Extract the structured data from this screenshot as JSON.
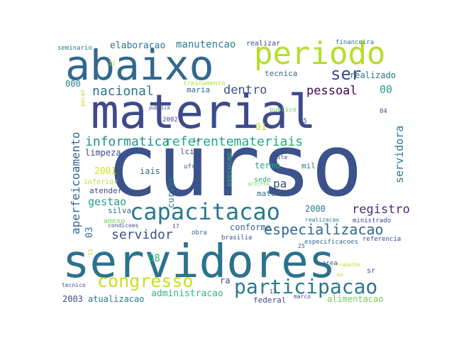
{
  "word_cloud": {
    "words": [
      {
        "text": "curso",
        "color": "#3b528b"
      },
      {
        "text": "material",
        "color": "#3e4a89"
      },
      {
        "text": "servidores",
        "color": "#2c728e"
      },
      {
        "text": "abaixo",
        "color": "#31688e"
      },
      {
        "text": "periodo",
        "color": "#b5de2b"
      },
      {
        "text": "capacitacao",
        "color": "#2a788e"
      },
      {
        "text": "participacao",
        "color": "#2a788e"
      },
      {
        "text": "congresso",
        "color": "#c8e020"
      },
      {
        "text": "especializacao",
        "color": "#31688e"
      },
      {
        "text": "referentemateriais",
        "color": "#22a884"
      },
      {
        "text": "informatica",
        "color": "#21918c"
      },
      {
        "text": "nacional",
        "color": "#2c728e"
      },
      {
        "text": "dentro",
        "color": "#3b528b"
      },
      {
        "text": "pessoal",
        "color": "#440154"
      },
      {
        "text": "ser",
        "color": "#3e4a89"
      },
      {
        "text": "servidor",
        "color": "#3b528b"
      },
      {
        "text": "registro",
        "color": "#482878"
      },
      {
        "text": "servidora",
        "color": "#2a788e"
      },
      {
        "text": "aperfeicoamento",
        "color": "#31688e"
      },
      {
        "text": "gestao",
        "color": "#1f9e89"
      },
      {
        "text": "manutencao",
        "color": "#26828e"
      },
      {
        "text": "elaboracao",
        "color": "#2c728e"
      },
      {
        "text": "administracao",
        "color": "#35b779"
      },
      {
        "text": "atualizacao",
        "color": "#2a788e"
      },
      {
        "text": "alimentacao",
        "color": "#6ece58"
      },
      {
        "text": "realizado",
        "color": "#2a788e"
      },
      {
        "text": "cursos",
        "color": "#2a788e"
      },
      {
        "text": "conforme",
        "color": "#31688e"
      },
      {
        "text": "limpeza",
        "color": "#3e4a89"
      },
      {
        "text": "silva",
        "color": "#31688e"
      },
      {
        "text": "termo",
        "color": "#22a884"
      },
      {
        "text": "federal",
        "color": "#3e4a89"
      },
      {
        "text": "2001",
        "color": "#d2e21b"
      },
      {
        "text": "08",
        "color": "#2db27d"
      },
      {
        "text": "03",
        "color": "#31688e"
      },
      {
        "text": "01",
        "color": "#b5de2b"
      },
      {
        "text": "00",
        "color": "#1f9e89"
      },
      {
        "text": "000",
        "color": "#26828e"
      },
      {
        "text": "2000",
        "color": "#2a788e"
      },
      {
        "text": "2003",
        "color": "#3e4a89"
      },
      {
        "text": "pa",
        "color": "#3e4a89"
      },
      {
        "text": "ra",
        "color": "#3e4a89"
      },
      {
        "text": "mil",
        "color": "#2a788e"
      },
      {
        "text": "iais",
        "color": "#31688e"
      },
      {
        "text": "lci",
        "color": "#3e4a89"
      },
      {
        "text": "ufrj",
        "color": "#3b528b"
      },
      {
        "text": "inferior",
        "color": "#b5de2b"
      },
      {
        "text": "atender",
        "color": "#3e4a89"
      },
      {
        "text": "anexo",
        "color": "#6ece58"
      },
      {
        "text": "mater",
        "color": "#31688e"
      },
      {
        "text": "sede",
        "color": "#22a884"
      },
      {
        "text": "execucao",
        "color": "#35b779"
      },
      {
        "text": "tecnica",
        "color": "#31688e"
      },
      {
        "text": "maria",
        "color": "#31688e"
      },
      {
        "text": "realizar",
        "color": "#3e4a89"
      },
      {
        "text": "seminario",
        "color": "#2a788e"
      },
      {
        "text": "financeira",
        "color": "#2a788e"
      },
      {
        "text": "treinamento",
        "color": "#b5de2b"
      },
      {
        "text": "publico",
        "color": "#6ece58"
      },
      {
        "text": "ministrado",
        "color": "#3e4a89"
      },
      {
        "text": "realizacao",
        "color": "#2a788e"
      },
      {
        "text": "especificacoes",
        "color": "#31688e"
      },
      {
        "text": "referencia",
        "color": "#3e4a89"
      },
      {
        "text": "condicoes",
        "color": "#3e4a89"
      },
      {
        "text": "brasilia",
        "color": "#3b528b"
      },
      {
        "text": "obra",
        "color": "#31688e"
      },
      {
        "text": "tecnico",
        "color": "#3e4a89"
      },
      {
        "text": "marco",
        "color": "#3e4a89"
      },
      {
        "text": "area",
        "color": "#3e4a89"
      },
      {
        "text": "trabalho",
        "color": "#b5de2b"
      },
      {
        "text": "sr",
        "color": "#3e4a89"
      },
      {
        "text": "pecas",
        "color": "#b5de2b"
      },
      {
        "text": "14",
        "color": "#31688e"
      },
      {
        "text": "11",
        "color": "#b5de2b"
      },
      {
        "text": "2002",
        "color": "#3e4a89"
      },
      {
        "text": "04",
        "color": "#3e4a89"
      },
      {
        "text": "05",
        "color": "#3e4a89"
      },
      {
        "text": "17",
        "color": "#3e4a89"
      },
      {
        "text": "13",
        "color": "#b5de2b"
      },
      {
        "text": "25",
        "color": "#3e4a89"
      },
      {
        "text": "12",
        "color": "#3e4a89"
      },
      {
        "text": "mite",
        "color": "#3e4a89"
      },
      {
        "text": "projeto",
        "color": "#6ece58"
      },
      {
        "text": "so",
        "color": "#b5de2b"
      },
      {
        "text": "publica",
        "color": "#3e4a89"
      }
    ]
  }
}
